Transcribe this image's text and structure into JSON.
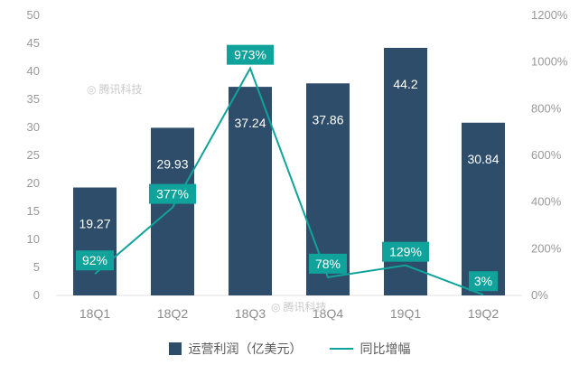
{
  "chart_data": {
    "type": "bar",
    "title": "",
    "categories": [
      "18Q1",
      "18Q2",
      "18Q3",
      "18Q4",
      "19Q1",
      "19Q2"
    ],
    "series": [
      {
        "name": "运营利润（亿美元）",
        "type": "bar",
        "values": [
          19.27,
          29.93,
          37.24,
          37.86,
          44.2,
          30.84
        ],
        "labels": [
          "19.27",
          "29.93",
          "37.24",
          "37.86",
          "44.2",
          "30.84"
        ],
        "color": "#2e4d6b",
        "axis": "left"
      },
      {
        "name": "同比增幅",
        "type": "line",
        "values_pct": [
          92,
          377,
          973,
          78,
          129,
          3
        ],
        "labels": [
          "92%",
          "377%",
          "973%",
          "78%",
          "129%",
          "3%"
        ],
        "color": "#10a39b",
        "axis": "right"
      }
    ],
    "left_axis": {
      "min": 0,
      "max": 50,
      "step": 5,
      "ticks": [
        "0",
        "5",
        "10",
        "15",
        "20",
        "25",
        "30",
        "35",
        "40",
        "45",
        "50"
      ]
    },
    "right_axis": {
      "min": 0,
      "max": 1200,
      "step": 200,
      "ticks": [
        "0%",
        "200%",
        "400%",
        "600%",
        "800%",
        "1000%",
        "1200%"
      ]
    },
    "legend": [
      "运营利润（亿美元）",
      "同比增幅"
    ],
    "legend_position": "bottom",
    "grid": "off"
  },
  "watermark": {
    "icon": "◎",
    "text": "腾讯科技"
  }
}
